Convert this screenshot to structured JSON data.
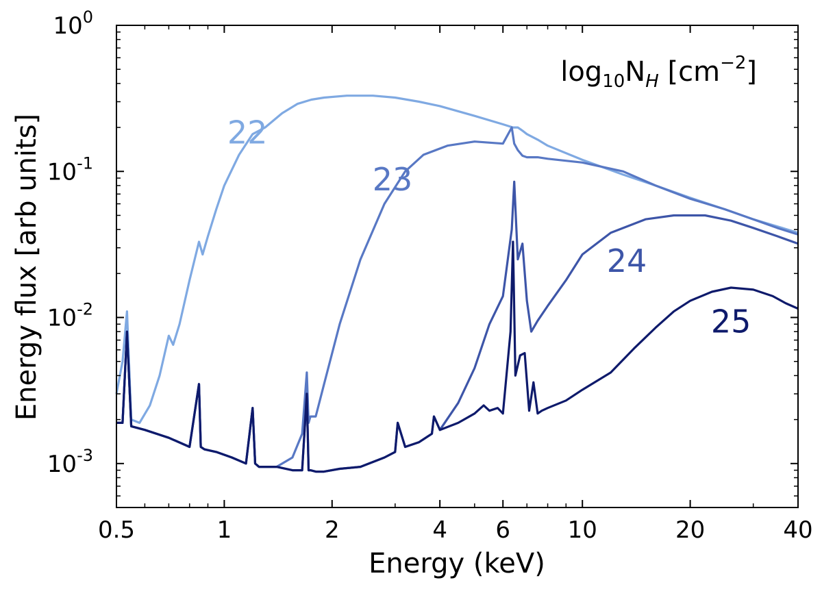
{
  "chart_data": {
    "type": "line",
    "xlabel": "Energy (keV)",
    "ylabel": "Energy flux [arb units]",
    "xscale": "log",
    "yscale": "log",
    "xlim": [
      0.5,
      40
    ],
    "ylim": [
      0.0005,
      1
    ],
    "x_ticks": [
      {
        "value": 0.5,
        "label": "0.5"
      },
      {
        "value": 1,
        "label": "1"
      },
      {
        "value": 2,
        "label": "2"
      },
      {
        "value": 4,
        "label": "4"
      },
      {
        "value": 6,
        "label": "6"
      },
      {
        "value": 10,
        "label": "10"
      },
      {
        "value": 20,
        "label": "20"
      },
      {
        "value": 40,
        "label": "40"
      }
    ],
    "y_ticks": [
      {
        "value": 0.001,
        "base": "10",
        "exp": "-3"
      },
      {
        "value": 0.01,
        "base": "10",
        "exp": "-2"
      },
      {
        "value": 0.1,
        "base": "10",
        "exp": "-1"
      },
      {
        "value": 1,
        "base": "10",
        "exp": "0"
      }
    ],
    "legend": {
      "prefix": "log",
      "sub1": "10",
      "mid": "N",
      "sub2": "H",
      "mid2": " [cm",
      "sup": "−2",
      "suffix": "]",
      "position": "top-right"
    },
    "series": [
      {
        "name": "22",
        "color": "#7fa9e2",
        "x": [
          0.5,
          0.52,
          0.535,
          0.55,
          0.58,
          0.62,
          0.66,
          0.7,
          0.72,
          0.75,
          0.8,
          0.85,
          0.87,
          0.9,
          0.95,
          1.0,
          1.1,
          1.2,
          1.3,
          1.45,
          1.6,
          1.75,
          1.9,
          2.2,
          2.6,
          3.0,
          3.5,
          4.0,
          5.0,
          6.0,
          6.4,
          6.6,
          6.8,
          7.0,
          7.5,
          8.0,
          10,
          13,
          16,
          20,
          25,
          30,
          35,
          40
        ],
        "y": [
          0.003,
          0.005,
          0.011,
          0.002,
          0.0019,
          0.0025,
          0.004,
          0.0075,
          0.0065,
          0.009,
          0.018,
          0.033,
          0.027,
          0.036,
          0.055,
          0.08,
          0.13,
          0.18,
          0.2,
          0.25,
          0.29,
          0.31,
          0.32,
          0.33,
          0.33,
          0.32,
          0.3,
          0.28,
          0.24,
          0.21,
          0.2,
          0.2,
          0.19,
          0.18,
          0.165,
          0.15,
          0.12,
          0.095,
          0.08,
          0.066,
          0.055,
          0.047,
          0.042,
          0.038
        ]
      },
      {
        "name": "23",
        "color": "#5878c4",
        "x": [
          0.5,
          0.52,
          0.535,
          0.55,
          0.6,
          0.7,
          0.8,
          0.85,
          0.86,
          0.88,
          0.95,
          1.05,
          1.15,
          1.2,
          1.22,
          1.25,
          1.4,
          1.55,
          1.65,
          1.7,
          1.72,
          1.74,
          1.8,
          1.9,
          2.1,
          2.4,
          2.8,
          3.2,
          3.6,
          4.2,
          5.0,
          6.0,
          6.35,
          6.45,
          6.6,
          6.8,
          7.0,
          7.5,
          8.0,
          10,
          13,
          16,
          20,
          25,
          30,
          35,
          40
        ],
        "y": [
          0.0019,
          0.0019,
          0.008,
          0.0018,
          0.0017,
          0.0015,
          0.0013,
          0.0035,
          0.0013,
          0.00125,
          0.0012,
          0.0011,
          0.001,
          0.0024,
          0.001,
          0.00095,
          0.00095,
          0.0011,
          0.0016,
          0.0042,
          0.0019,
          0.0021,
          0.0021,
          0.0035,
          0.009,
          0.025,
          0.06,
          0.1,
          0.13,
          0.15,
          0.16,
          0.155,
          0.2,
          0.155,
          0.14,
          0.128,
          0.125,
          0.125,
          0.122,
          0.115,
          0.1,
          0.08,
          0.065,
          0.055,
          0.047,
          0.041,
          0.037
        ]
      },
      {
        "name": "24",
        "color": "#3d55a8",
        "x": [
          0.5,
          0.52,
          0.535,
          0.55,
          0.6,
          0.7,
          0.8,
          0.85,
          0.86,
          0.88,
          0.95,
          1.05,
          1.15,
          1.2,
          1.22,
          1.25,
          1.4,
          1.55,
          1.65,
          1.7,
          1.72,
          1.74,
          1.8,
          1.9,
          2.1,
          2.4,
          2.8,
          3.0,
          3.05,
          3.2,
          3.5,
          3.8,
          3.85,
          4.0,
          4.5,
          5.0,
          5.5,
          6.0,
          6.35,
          6.45,
          6.6,
          6.8,
          7.0,
          7.2,
          7.5,
          8.0,
          9.0,
          10,
          12,
          15,
          18,
          22,
          26,
          30,
          35,
          40
        ],
        "y": [
          0.0019,
          0.0019,
          0.008,
          0.0018,
          0.0017,
          0.0015,
          0.0013,
          0.0035,
          0.0013,
          0.00125,
          0.0012,
          0.0011,
          0.001,
          0.0024,
          0.001,
          0.00095,
          0.00095,
          0.0009,
          0.0009,
          0.003,
          0.0009,
          0.0009,
          0.00088,
          0.00088,
          0.00092,
          0.00095,
          0.0011,
          0.0012,
          0.0019,
          0.0013,
          0.0014,
          0.0016,
          0.0021,
          0.0017,
          0.0026,
          0.0045,
          0.009,
          0.014,
          0.04,
          0.085,
          0.025,
          0.032,
          0.013,
          0.008,
          0.0095,
          0.012,
          0.018,
          0.027,
          0.038,
          0.047,
          0.05,
          0.05,
          0.046,
          0.041,
          0.036,
          0.032
        ]
      },
      {
        "name": "25",
        "color": "#0e1a6b",
        "x": [
          0.5,
          0.52,
          0.535,
          0.55,
          0.6,
          0.7,
          0.8,
          0.85,
          0.86,
          0.88,
          0.95,
          1.05,
          1.15,
          1.2,
          1.22,
          1.25,
          1.4,
          1.55,
          1.65,
          1.7,
          1.72,
          1.74,
          1.8,
          1.9,
          2.1,
          2.4,
          2.8,
          3.0,
          3.05,
          3.2,
          3.5,
          3.8,
          3.85,
          4.0,
          4.5,
          5.0,
          5.3,
          5.5,
          5.8,
          6.0,
          6.3,
          6.4,
          6.5,
          6.7,
          6.9,
          7.1,
          7.3,
          7.5,
          7.7,
          8.0,
          9.0,
          10,
          12,
          14,
          16,
          18,
          20,
          23,
          26,
          30,
          34,
          37,
          40
        ],
        "y": [
          0.0019,
          0.0019,
          0.008,
          0.0018,
          0.0017,
          0.0015,
          0.0013,
          0.0035,
          0.0013,
          0.00125,
          0.0012,
          0.0011,
          0.001,
          0.0024,
          0.001,
          0.00095,
          0.00095,
          0.0009,
          0.0009,
          0.003,
          0.0009,
          0.0009,
          0.00088,
          0.00088,
          0.00092,
          0.00095,
          0.0011,
          0.0012,
          0.0019,
          0.0013,
          0.0014,
          0.0016,
          0.0021,
          0.0017,
          0.0019,
          0.0022,
          0.0025,
          0.0023,
          0.0024,
          0.0022,
          0.008,
          0.033,
          0.004,
          0.0055,
          0.0057,
          0.0023,
          0.0036,
          0.0022,
          0.0023,
          0.0024,
          0.0027,
          0.0032,
          0.0042,
          0.0062,
          0.0085,
          0.011,
          0.013,
          0.015,
          0.016,
          0.0155,
          0.014,
          0.0125,
          0.0115
        ]
      }
    ]
  }
}
